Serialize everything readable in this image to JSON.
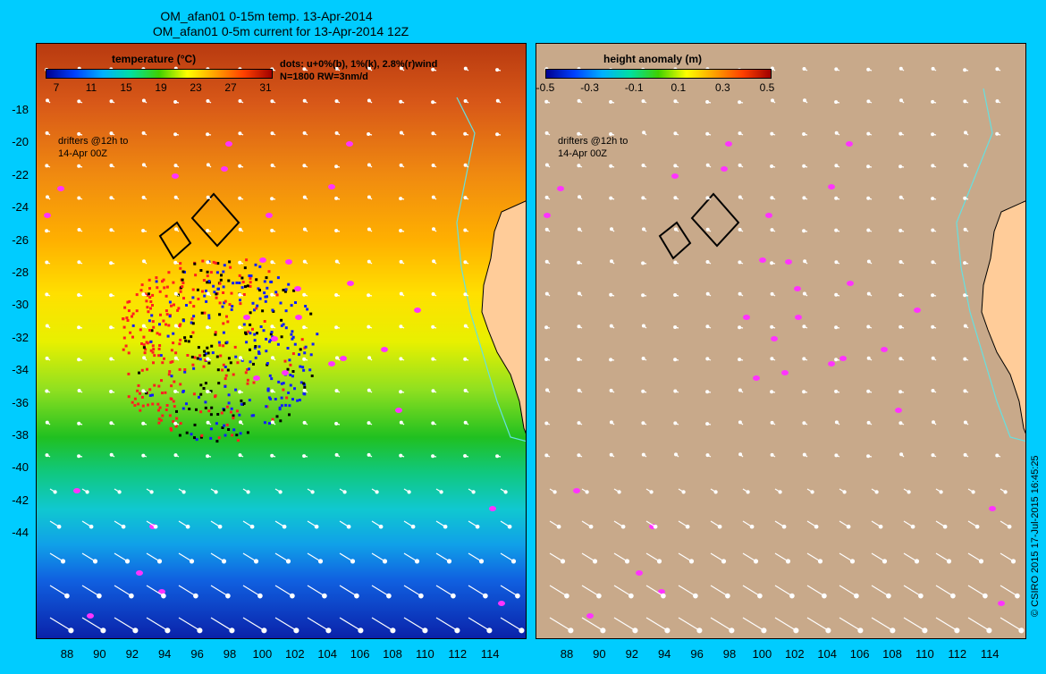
{
  "titles": {
    "line1": "OM_afan01 0-15m temp. 13-Apr-2014",
    "line2": "OM_afan01 0-5m current for 13-Apr-2014 12Z"
  },
  "left_panel": {
    "colorbar_title": "temperature (°C)",
    "colorbar_ticks": [
      "7",
      "11",
      "15",
      "19",
      "23",
      "27",
      "31"
    ],
    "dots_note_line1": "dots: u+0%(b), 1%(k), 2.8%(r)wind",
    "dots_note_line2": "N=1800 RW=3nm/d",
    "drifters_line1": "drifters @12h to",
    "drifters_line2": "14-Apr 00Z"
  },
  "right_panel": {
    "colorbar_title": "height anomaly (m)",
    "colorbar_ticks": [
      "-0.5",
      "-0.3",
      "-0.1",
      "0.1",
      "0.3",
      "0.5"
    ],
    "drifters_line1": "drifters @12h to",
    "drifters_line2": "14-Apr 00Z"
  },
  "axes": {
    "y_labels": [
      "-18",
      "-20",
      "-22",
      "-24",
      "-26",
      "-28",
      "-30",
      "-32",
      "-34",
      "-36",
      "-38",
      "-40",
      "-42",
      "-44"
    ],
    "x_labels": [
      "88",
      "90",
      "92",
      "94",
      "96",
      "98",
      "100",
      "102",
      "104",
      "106",
      "108",
      "110",
      "112",
      "114"
    ]
  },
  "copyright": "© CSIRO 2015   17-Jul-2015 16:45:25",
  "colors": {
    "background": "#00ccff",
    "land": "#ffcc99",
    "ssh_field": "#c8a98a",
    "drifter_magenta": "#ff33ff",
    "dots_red": "#ff2020",
    "dots_blue": "#1020ff",
    "dots_black": "#000000",
    "coast_cyan": "#66e0e0"
  }
}
